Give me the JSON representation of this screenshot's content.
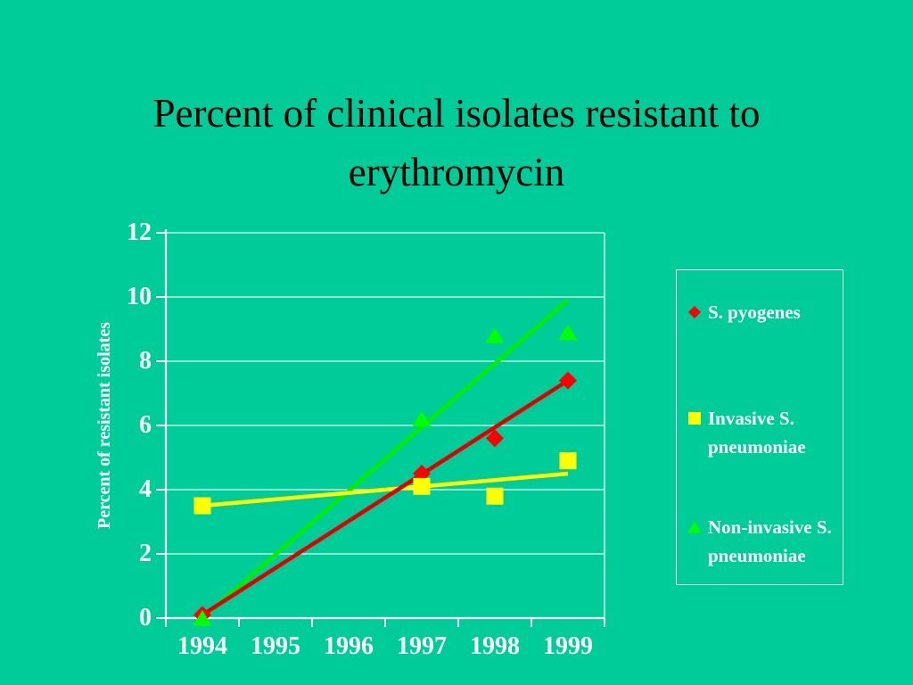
{
  "slide": {
    "title_line1": "Percent of clinical isolates resistant to",
    "title_line2": "erythromycin",
    "background_color": "#00CC99",
    "title_color": "#000000",
    "text_color": "#FFFFFF"
  },
  "chart_data": {
    "type": "scatter",
    "title": "Percent of clinical isolates resistant to erythromycin",
    "xlabel": "",
    "ylabel": "Percent of resistant isolates",
    "categories": [
      "1994",
      "1995",
      "1996",
      "1997",
      "1998",
      "1999"
    ],
    "y_ticks": [
      0,
      2,
      4,
      6,
      8,
      10,
      12
    ],
    "ylim": [
      0,
      12
    ],
    "grid": true,
    "gridline_color": "#FFFFFF",
    "axis_color": "#FFFFFF",
    "legend_position": "right-boxed",
    "series": [
      {
        "name": "S. pyogenes",
        "legend_lines": [
          "S. pyogenes"
        ],
        "marker": "diamond",
        "color": "#FF0000",
        "line_color": "#E00000",
        "points": [
          {
            "x": "1994",
            "y": 0.1
          },
          {
            "x": "1997",
            "y": 4.5
          },
          {
            "x": "1998",
            "y": 5.6
          },
          {
            "x": "1999",
            "y": 7.4
          }
        ],
        "trendline": {
          "x0": "1994",
          "y0": 0.1,
          "x1": "1999",
          "y1": 7.4
        }
      },
      {
        "name": "Invasive S. pneumoniae",
        "legend_lines": [
          "Invasive S.",
          "pneumoniae"
        ],
        "marker": "square",
        "color": "#FFFF00",
        "line_color": "#FFFF00",
        "points": [
          {
            "x": "1994",
            "y": 3.5
          },
          {
            "x": "1997",
            "y": 4.1
          },
          {
            "x": "1998",
            "y": 3.8
          },
          {
            "x": "1999",
            "y": 4.9
          }
        ],
        "trendline": {
          "x0": "1994",
          "y0": 3.5,
          "x1": "1999",
          "y1": 4.5
        }
      },
      {
        "name": "Non-invasive S. pneumoniae",
        "legend_lines": [
          "Non-invasive S.",
          "pneumoniae"
        ],
        "marker": "triangle",
        "color": "#00FF00",
        "line_color": "#00EE00",
        "points": [
          {
            "x": "1994",
            "y": 0
          },
          {
            "x": "1997",
            "y": 6.2
          },
          {
            "x": "1998",
            "y": 8.8
          },
          {
            "x": "1999",
            "y": 8.9
          }
        ],
        "trendline": {
          "x0": "1994",
          "y0": 0,
          "x1": "1999",
          "y1": 9.9
        }
      }
    ]
  }
}
